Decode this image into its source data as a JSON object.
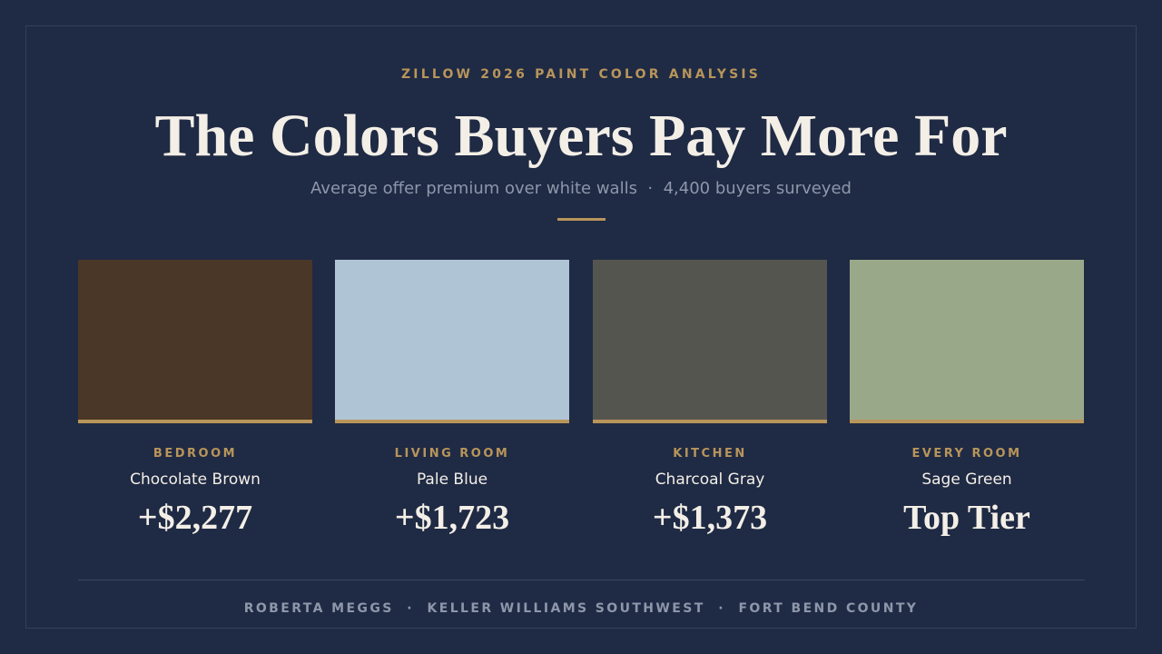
{
  "header": {
    "eyebrow": "ZILLOW 2026 PAINT COLOR ANALYSIS",
    "title": "The Colors Buyers Pay More For",
    "subtitle": "Average offer premium over white walls  ·  4,400 buyers surveyed"
  },
  "cards": [
    {
      "room": "BEDROOM",
      "name": "Chocolate Brown",
      "premium": "+$2,277",
      "color": "#4a3728"
    },
    {
      "room": "LIVING ROOM",
      "name": "Pale Blue",
      "premium": "+$1,723",
      "color": "#afc4d5"
    },
    {
      "room": "KITCHEN",
      "name": "Charcoal Gray",
      "premium": "+$1,373",
      "color": "#55554f"
    },
    {
      "room": "EVERY ROOM",
      "name": "Sage Green",
      "premium": "Top Tier",
      "color": "#9aa88a"
    }
  ],
  "footer": "ROBERTA MEGGS  ·  KELLER WILLIAMS SOUTHWEST  ·  FORT BEND COUNTY"
}
